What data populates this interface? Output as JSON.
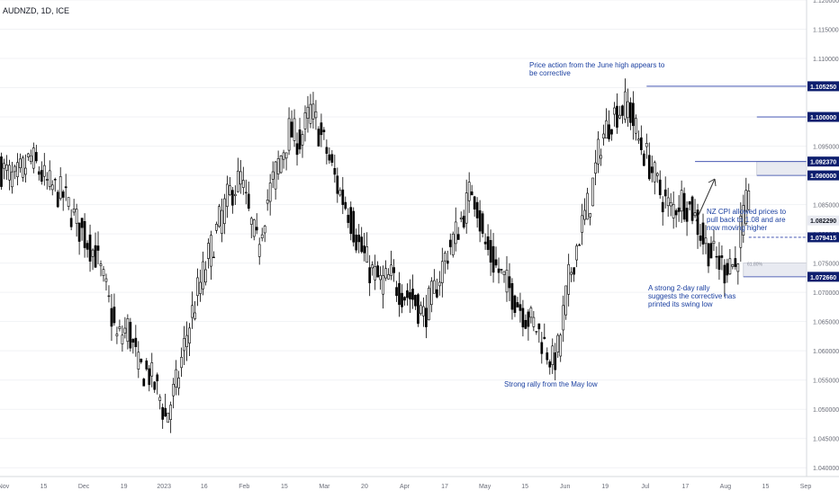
{
  "symbol_header": "AUDNZD, 1D, ICE",
  "colors": {
    "candle_border": "#000000",
    "bull_fill": "#ffffff",
    "bear_fill": "#000000",
    "annotation_text": "#1a3fa0",
    "level_line": "#2b3fa8",
    "badge_bg": "#0d1e6e",
    "badge_text": "#ffffff",
    "axis_text": "#6a6d78",
    "zone_fill": "#e8eaf1",
    "zone_border": "#b5bac9"
  },
  "chart_data": {
    "type": "candlestick",
    "y_range": [
      1.0385,
      1.12
    ],
    "y_ticks": [
      "1.120000",
      "1.115000",
      "1.110000",
      "1.105000",
      "1.100000",
      "1.095000",
      "1.090000",
      "1.085000",
      "1.080000",
      "1.075000",
      "1.070000",
      "1.065000",
      "1.060000",
      "1.055000",
      "1.050000",
      "1.045000",
      "1.040000"
    ],
    "x_tick_labels": [
      "Nov",
      "15",
      "Dec",
      "19",
      "2023",
      "16",
      "Feb",
      "15",
      "Mar",
      "20",
      "Apr",
      "17",
      "May",
      "15",
      "Jun",
      "19",
      "Jul",
      "17",
      "Aug",
      "15",
      "Sep"
    ],
    "price_path": [
      [
        0,
        1.0915
      ],
      [
        6,
        1.089
      ],
      [
        12,
        1.093
      ],
      [
        18,
        1.0885
      ],
      [
        24,
        1.0865
      ],
      [
        30,
        1.081
      ],
      [
        36,
        1.0765
      ],
      [
        40,
        1.07
      ],
      [
        44,
        1.062
      ],
      [
        48,
        1.064
      ],
      [
        52,
        1.057
      ],
      [
        56,
        1.056
      ],
      [
        60,
        1.052
      ],
      [
        62,
        1.0485
      ],
      [
        66,
        1.054
      ],
      [
        70,
        1.063
      ],
      [
        74,
        1.07
      ],
      [
        78,
        1.076
      ],
      [
        82,
        1.082
      ],
      [
        86,
        1.087
      ],
      [
        90,
        1.0895
      ],
      [
        93,
        1.083
      ],
      [
        96,
        1.078
      ],
      [
        100,
        1.086
      ],
      [
        104,
        1.092
      ],
      [
        108,
        1.0975
      ],
      [
        112,
        1.096
      ],
      [
        116,
        1.101
      ],
      [
        118,
        1.099
      ],
      [
        122,
        1.094
      ],
      [
        126,
        1.088
      ],
      [
        130,
        1.084
      ],
      [
        134,
        1.078
      ],
      [
        138,
        1.074
      ],
      [
        142,
        1.0715
      ],
      [
        146,
        1.0725
      ],
      [
        150,
        1.07
      ],
      [
        154,
        1.069
      ],
      [
        158,
        1.066
      ],
      [
        162,
        1.07
      ],
      [
        166,
        1.076
      ],
      [
        170,
        1.08
      ],
      [
        174,
        1.085
      ],
      [
        176,
        1.088
      ],
      [
        178,
        1.085
      ],
      [
        180,
        1.079
      ],
      [
        184,
        1.075
      ],
      [
        188,
        1.072
      ],
      [
        192,
        1.069
      ],
      [
        196,
        1.066
      ],
      [
        200,
        1.064
      ],
      [
        204,
        1.06
      ],
      [
        206,
        1.058
      ],
      [
        208,
        1.06
      ],
      [
        212,
        1.072
      ],
      [
        216,
        1.08
      ],
      [
        220,
        1.086
      ],
      [
        224,
        1.096
      ],
      [
        228,
        1.1
      ],
      [
        230,
        1.101
      ],
      [
        234,
        1.102
      ],
      [
        238,
        1.096
      ],
      [
        242,
        1.092
      ],
      [
        246,
        1.087
      ],
      [
        250,
        1.084
      ],
      [
        254,
        1.086
      ],
      [
        258,
        1.084
      ],
      [
        262,
        1.079
      ],
      [
        266,
        1.076
      ],
      [
        270,
        1.074
      ],
      [
        272,
        1.076
      ],
      [
        274,
        1.074
      ],
      [
        276,
        1.081
      ],
      [
        278,
        1.0845
      ]
    ]
  },
  "levels": [
    {
      "label": "1.105250",
      "value": 1.10525,
      "from_bar": 240,
      "style": "solid"
    },
    {
      "label": "1.100000",
      "value": 1.1,
      "from_bar": 281,
      "style": "solid"
    },
    {
      "label": "1.092370",
      "value": 1.09237,
      "from_bar": 258,
      "style": "solid"
    },
    {
      "label": "1.090000",
      "value": 1.09,
      "from_bar": 281,
      "style": "solid"
    },
    {
      "label": "1.079415",
      "value": 1.079415,
      "from_bar": 278,
      "style": "dashed"
    },
    {
      "label": "1.072660",
      "value": 1.07266,
      "from_bar": 276,
      "style": "solid"
    }
  ],
  "current_price": {
    "label": "1.082290",
    "value": 1.08229
  },
  "zones": [
    {
      "top": 1.09237,
      "bottom": 1.09,
      "from_bar": 281
    },
    {
      "top": 1.075,
      "bottom": 1.07266,
      "from_bar": 276,
      "label": "61.80%"
    }
  ],
  "annotations": {
    "june_high": "Price action from the June high appears to be corrective",
    "may_low": "Strong rally from the May low",
    "nz_cpi": "NZ CPI allowed prices to pull back to 1.08 and are now moving higher",
    "rally": "A strong 2-day rally suggests the corrective  has printed its swing low"
  }
}
